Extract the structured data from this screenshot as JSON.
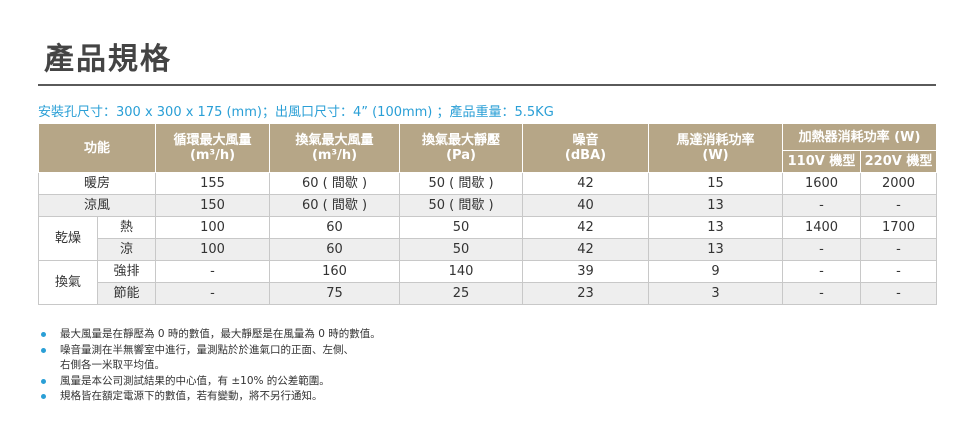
{
  "title": "產品規格",
  "spec_line": "安裝孔尺寸：300 x 300 x 175 (mm)；出風口尺寸：4” (100mm) ；產品重量：5.5KG",
  "table": {
    "headers": {
      "function": "功能",
      "circ_flow": [
        "循環最大風量",
        "(m³/h)"
      ],
      "exh_flow": [
        "換氣最大風量",
        "(m³/h)"
      ],
      "static_pressure": [
        "換氣最大靜壓",
        "(Pa)"
      ],
      "noise": [
        "噪音",
        "(dBA)"
      ],
      "motor_power": [
        "馬達消耗功率",
        "(W)"
      ],
      "heater_power": "加熱器消耗功率 (W)",
      "v110": "110V 機型",
      "v220": "220V 機型"
    },
    "rows": [
      {
        "group": "暖房",
        "sub": "",
        "cells": [
          "155",
          "60 ( 間歇 )",
          "50 ( 間歇 )",
          "42",
          "15",
          "1600",
          "2000"
        ]
      },
      {
        "group": "涼風",
        "sub": "",
        "cells": [
          "150",
          "60 ( 間歇 )",
          "50 ( 間歇 )",
          "40",
          "13",
          "-",
          "-"
        ]
      },
      {
        "group": "乾燥",
        "sub": "熱",
        "cells": [
          "100",
          "60",
          "50",
          "42",
          "13",
          "1400",
          "1700"
        ]
      },
      {
        "group": "",
        "sub": "涼",
        "cells": [
          "100",
          "60",
          "50",
          "42",
          "13",
          "-",
          "-"
        ]
      },
      {
        "group": "換氣",
        "sub": "強排",
        "cells": [
          "-",
          "160",
          "140",
          "39",
          "9",
          "-",
          "-"
        ]
      },
      {
        "group": "",
        "sub": "節能",
        "cells": [
          "-",
          "75",
          "25",
          "23",
          "3",
          "-",
          "-"
        ]
      }
    ]
  },
  "notes": [
    "最大風量是在靜壓為 0 時的數值，最大靜壓是在風量為 0 時的數值。",
    "噪音量測在半無響室中進行，量測點於於進氣口的正面、左側、",
    "右側各一米取平均值。",
    "風量是本公司測試結果的中心值，有 ±10% 的公差範圍。",
    "規格皆在額定電源下的數值，若有變動，將不另行通知。"
  ],
  "colors": {
    "header_bg": "#b6a687",
    "accent": "#2a9fd6",
    "row_shade": "#eeeeee"
  }
}
